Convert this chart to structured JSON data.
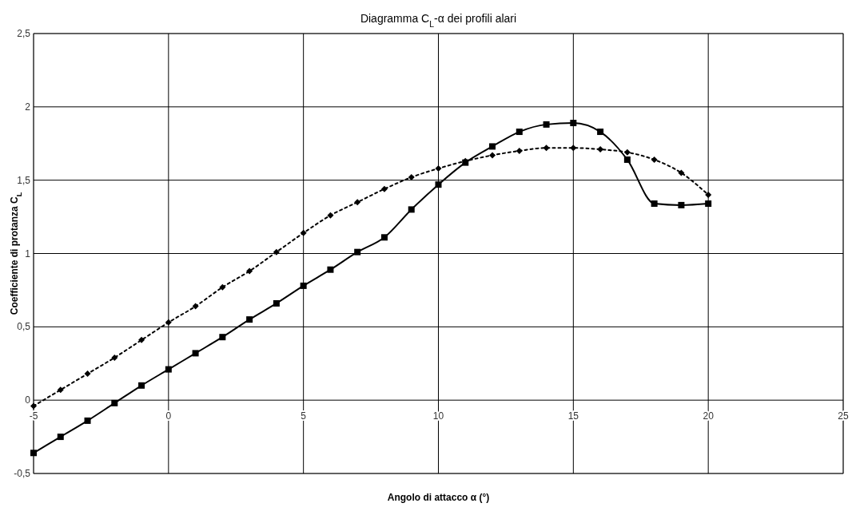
{
  "chart_data": {
    "type": "line",
    "title": "Diagramma C$_{L}$-α dei profili alari",
    "xlabel": "Angolo di attacco α (°)",
    "ylabel": "Coefficiente di protanza C$_{L}$",
    "x": [
      -5,
      -4,
      -3,
      -2,
      -1,
      0,
      1,
      2,
      3,
      4,
      5,
      6,
      7,
      8,
      9,
      10,
      11,
      12,
      13,
      14,
      15,
      16,
      17,
      18,
      19,
      20
    ],
    "series": [
      {
        "color": "#000000",
        "marker": "square",
        "line_style": "solid",
        "values": [
          -0.36,
          -0.25,
          -0.14,
          -0.02,
          0.1,
          0.21,
          0.32,
          0.43,
          0.55,
          0.66,
          0.78,
          0.89,
          1.01,
          1.11,
          1.3,
          1.47,
          1.62,
          1.73,
          1.83,
          1.88,
          1.89,
          1.83,
          1.64,
          1.34,
          1.33,
          1.34
        ]
      },
      {
        "color": "#000000",
        "marker": "diamond",
        "line_style": "dotted",
        "values": [
          -0.04,
          0.07,
          0.18,
          0.29,
          0.41,
          0.53,
          0.64,
          0.77,
          0.88,
          1.01,
          1.14,
          1.26,
          1.35,
          1.44,
          1.52,
          1.58,
          1.63,
          1.67,
          1.7,
          1.72,
          1.72,
          1.71,
          1.69,
          1.64,
          1.55,
          1.4
        ]
      }
    ],
    "xlim": [
      -5,
      25
    ],
    "xticks": [
      -5,
      0,
      5,
      10,
      15,
      20,
      25
    ],
    "ylim": [
      -0.5,
      2.5
    ],
    "yticks": [
      {
        "value": -0.5,
        "label": "-0,5"
      },
      0,
      {
        "value": 0.5,
        "label": "0,5"
      },
      1,
      {
        "value": 1.5,
        "label": "1,5"
      },
      2,
      {
        "value": 2.5,
        "label": "2,5"
      }
    ],
    "grid": true
  }
}
